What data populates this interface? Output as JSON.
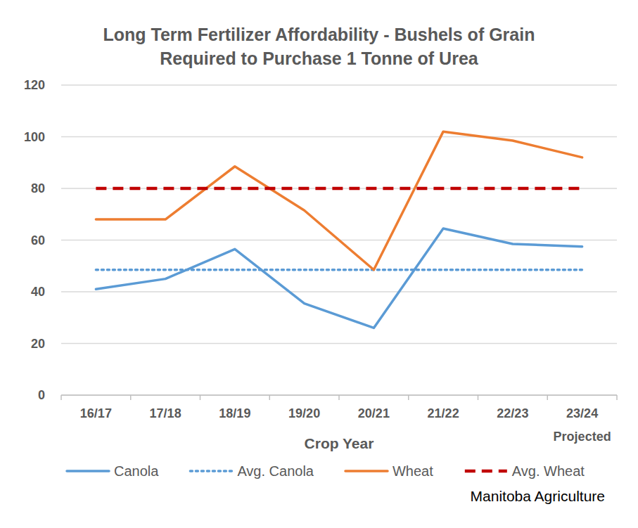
{
  "chart_data": {
    "type": "line",
    "title": "Long Term Fertilizer Affordability - Bushels of Grain Required to Purchase 1 Tonne of Urea",
    "x_label": "Crop Year",
    "categories": [
      "16/17",
      "17/18",
      "18/19",
      "19/20",
      "20/21",
      "21/22",
      "22/23",
      "23/24"
    ],
    "series": [
      {
        "name": "Canola",
        "color": "#5b9bd5",
        "line_style": "solid",
        "values": [
          41,
          45,
          56.5,
          35.5,
          26,
          64.5,
          58.5,
          57.5
        ]
      },
      {
        "name": "Avg. Canola",
        "color": "#5b9bd5",
        "line_style": "dotted",
        "values": [
          48.5,
          48.5,
          48.5,
          48.5,
          48.5,
          48.5,
          48.5,
          48.5
        ]
      },
      {
        "name": "Wheat",
        "color": "#ed7d31",
        "line_style": "solid",
        "values": [
          68,
          68,
          88.5,
          71.5,
          48.5,
          102,
          98.5,
          92
        ]
      },
      {
        "name": "Avg. Wheat",
        "color": "#c00000",
        "line_style": "dashed",
        "values": [
          80,
          80,
          80,
          80,
          80,
          80,
          80,
          80
        ]
      }
    ],
    "ylim": [
      0,
      120
    ],
    "yticks": [
      0,
      20,
      40,
      60,
      80,
      100,
      120
    ],
    "grid": true,
    "legend": "bottom",
    "annotations": [
      {
        "text": "Projected",
        "x": "23/24"
      },
      {
        "text": "Manitoba Agriculture"
      }
    ]
  }
}
